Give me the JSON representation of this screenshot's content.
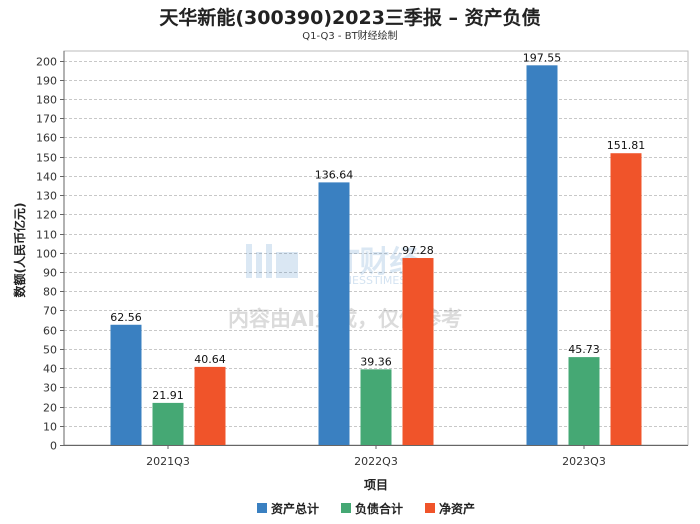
{
  "chart_data": {
    "type": "bar",
    "title": "天华新能(300390)2023三季报 – 资产负债",
    "subtitle": "Q1-Q3 - BT财经绘制",
    "xlabel": "项目",
    "ylabel": "数额(人民币亿元)",
    "categories": [
      "2021Q3",
      "2022Q3",
      "2023Q3"
    ],
    "ylim": [
      0,
      205
    ],
    "yticks": [
      0,
      10,
      20,
      30,
      40,
      50,
      60,
      70,
      80,
      90,
      100,
      110,
      120,
      130,
      140,
      150,
      160,
      170,
      180,
      190,
      200
    ],
    "grid": true,
    "legend_position": "bottom",
    "series": [
      {
        "name": "资产总计",
        "color": "#3a80c1",
        "values": [
          62.56,
          136.64,
          197.55
        ]
      },
      {
        "name": "负债合计",
        "color": "#45a874",
        "values": [
          21.91,
          39.36,
          45.73
        ]
      },
      {
        "name": "净资产",
        "color": "#f0542a",
        "values": [
          40.64,
          97.28,
          151.81
        ]
      }
    ]
  },
  "watermark": {
    "logo_text": "BT财经",
    "logo_sub": "BUSINESSTIMES",
    "notice": "内容由AI生成，仅供参考"
  }
}
